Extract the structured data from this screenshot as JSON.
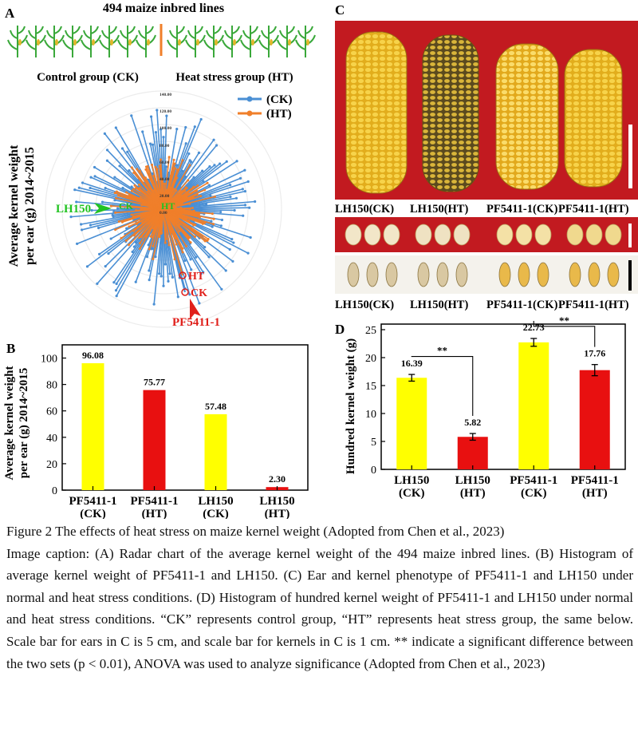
{
  "panelA": {
    "letter": "A",
    "title": "494 maize inbred lines",
    "ck_group": "Control group (CK)",
    "ht_group": "Heat stress group (HT)",
    "legend": [
      "(CK)",
      "(HT)"
    ],
    "ylabel_line1": "Average kernel weight",
    "ylabel_line2": "per ear (g) 2014~2015",
    "radial_ticks": [
      "140.00",
      "120.00",
      "100.00",
      "80.00",
      "60.00",
      "40.00",
      "20.00",
      "0.00"
    ],
    "annot_lh150": "LH150",
    "annot_ck_small": "CK",
    "annot_ht_small": "HT",
    "annot_ht": "HT",
    "annot_ck": "CK",
    "annot_pf": "PF5411-1",
    "colors": {
      "ck": "#4a8fd4",
      "ht": "#f07f2a",
      "green": "#22c322",
      "red": "#e0201b",
      "plant": "#3aa83a",
      "divider": "#f07f2a"
    }
  },
  "chart_data": [
    {
      "type": "bar",
      "panel": "B",
      "categories": [
        "PF5411-1 (CK)",
        "PF5411-1 (HT)",
        "LH150 (CK)",
        "LH150 (HT)"
      ],
      "values": [
        96.08,
        75.77,
        57.48,
        2.3
      ],
      "value_labels": [
        "96.08",
        "75.77",
        "57.48",
        "2.30"
      ],
      "colors": [
        "#ffff00",
        "#e81010",
        "#ffff00",
        "#e81010"
      ],
      "ylabel": "Average kernel weight per ear (g) 2014~2015",
      "yticks": [
        "0",
        "20",
        "40",
        "60",
        "80",
        "100"
      ],
      "ylim": [
        0,
        110
      ]
    },
    {
      "type": "bar",
      "panel": "D",
      "categories": [
        "LH150 (CK)",
        "LH150 (HT)",
        "PF5411-1 (CK)",
        "PF5411-1 (HT)"
      ],
      "values": [
        16.39,
        5.82,
        22.73,
        17.76
      ],
      "value_labels": [
        "16.39",
        "5.82",
        "22.73",
        "17.76"
      ],
      "errors": [
        0.6,
        0.6,
        0.7,
        1.0
      ],
      "colors": [
        "#ffff00",
        "#e81010",
        "#ffff00",
        "#e81010"
      ],
      "ylabel": "Hundred kernel weight (g)",
      "yticks": [
        "0",
        "5",
        "10",
        "15",
        "20",
        "25"
      ],
      "ylim": [
        0,
        26
      ],
      "significance": "**"
    }
  ],
  "panelB": {
    "letter": "B",
    "ylabel_line1": "Average kernel weight",
    "ylabel_line2": "per ear (g) 2014~2015",
    "xlabels": [
      [
        "PF5411-1",
        "(CK)"
      ],
      [
        "PF5411-1",
        "(HT)"
      ],
      [
        "LH150",
        "(CK)"
      ],
      [
        "LH150",
        "(HT)"
      ]
    ]
  },
  "panelD": {
    "letter": "D",
    "xlabels": [
      [
        "LH150",
        "(CK)"
      ],
      [
        "LH150",
        "(HT)"
      ],
      [
        "PF5411-1",
        "(CK)"
      ],
      [
        "PF5411-1",
        "(HT)"
      ]
    ]
  },
  "panelC": {
    "letter": "C",
    "ear_labels": [
      "LH150(CK)",
      "LH150(HT)",
      "PF5411-1(CK)",
      "PF5411-1(HT)"
    ],
    "kernel_labels": [
      "LH150(CK)",
      "LH150(HT)",
      "PF5411-1(CK)",
      "PF5411-1(HT)"
    ],
    "colors": {
      "background": "#c21a20",
      "kernel_bg": "#f4f2ec",
      "ear": "#e8b826"
    }
  },
  "caption": {
    "figure_line": "Figure 2 The effects of heat stress on maize kernel weight (Adopted from Chen et al., 2023)",
    "body": "Image caption: (A) Radar chart of the average kernel weight of the 494 maize inbred lines. (B) Histogram of average kernel weight of PF5411-1 and LH150. (C) Ear and kernel phenotype of PF5411-1 and LH150 under normal and heat stress conditions. (D) Histogram of hundred kernel weight of PF5411-1 and LH150 under normal and heat stress conditions. “CK” represents control group, “HT” represents heat stress group, the same below. Scale bar for ears in C is 5 cm, and scale bar for kernels in C is 1 cm. ** indicate a significant difference between the two sets (p < 0.01), ANOVA was used to analyze significance (Adopted from Chen et al., 2023)"
  }
}
